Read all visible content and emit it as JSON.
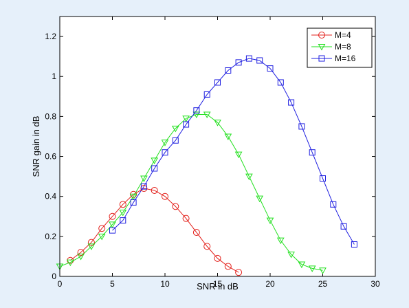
{
  "chart_data": {
    "type": "line",
    "xlabel": "SNR in dB",
    "ylabel": "SNR gain in dB",
    "xlim": [
      0,
      30
    ],
    "ylim": [
      0,
      1.3
    ],
    "xticks": [
      0,
      5,
      10,
      15,
      20,
      25,
      30
    ],
    "yticks": [
      0,
      0.2,
      0.4,
      0.6,
      0.8,
      1,
      1.2
    ],
    "xtick_labels": [
      "0",
      "5",
      "10",
      "15",
      "20",
      "25",
      "30"
    ],
    "ytick_labels": [
      "0",
      "0.2",
      "0.4",
      "0.6",
      "0.8",
      "1",
      "1.2"
    ],
    "grid": false,
    "legend_position": "top-right",
    "series": [
      {
        "name": "M=4",
        "color": "#e3201b",
        "marker": "circle",
        "x": [
          1,
          2,
          3,
          4,
          5,
          6,
          7,
          8,
          9,
          10,
          11,
          12,
          13,
          14,
          15,
          16,
          17
        ],
        "y": [
          0.08,
          0.12,
          0.17,
          0.24,
          0.3,
          0.36,
          0.41,
          0.44,
          0.43,
          0.4,
          0.35,
          0.29,
          0.22,
          0.15,
          0.09,
          0.05,
          0.02
        ]
      },
      {
        "name": "M=8",
        "color": "#22e01e",
        "marker": "triangle-down",
        "x": [
          0,
          1,
          2,
          3,
          4,
          5,
          6,
          7,
          8,
          9,
          10,
          11,
          12,
          13,
          14,
          15,
          16,
          17,
          18,
          19,
          20,
          21,
          22,
          23,
          24,
          25
        ],
        "y": [
          0.05,
          0.07,
          0.1,
          0.15,
          0.2,
          0.26,
          0.32,
          0.4,
          0.49,
          0.58,
          0.67,
          0.74,
          0.79,
          0.81,
          0.81,
          0.77,
          0.7,
          0.61,
          0.5,
          0.39,
          0.28,
          0.18,
          0.11,
          0.06,
          0.04,
          0.03
        ]
      },
      {
        "name": "M=16",
        "color": "#1e1ee0",
        "marker": "square",
        "x": [
          5,
          6,
          7,
          8,
          9,
          10,
          11,
          12,
          13,
          14,
          15,
          16,
          17,
          18,
          19,
          20,
          21,
          22,
          23,
          24,
          25,
          26,
          27,
          28
        ],
        "y": [
          0.23,
          0.28,
          0.37,
          0.45,
          0.54,
          0.62,
          0.68,
          0.76,
          0.83,
          0.91,
          0.97,
          1.03,
          1.07,
          1.09,
          1.08,
          1.04,
          0.97,
          0.87,
          0.75,
          0.62,
          0.49,
          0.36,
          0.25,
          0.16
        ]
      }
    ]
  }
}
